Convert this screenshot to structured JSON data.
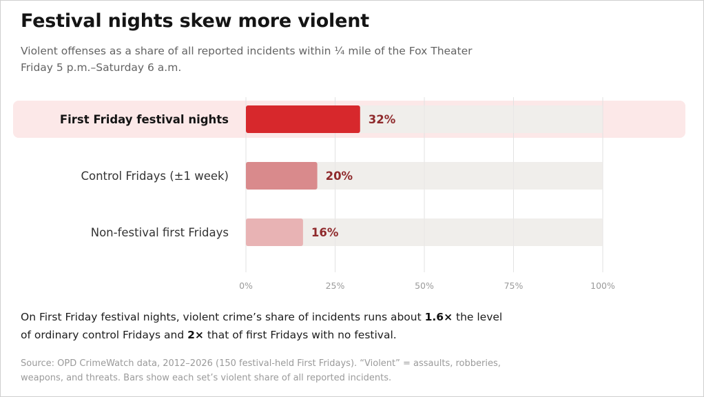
{
  "title": "Festival nights skew more violent",
  "subtitle_line1": "Violent offenses as a share of all reported incidents within ¼ mile of the Fox Theater",
  "subtitle_line2": "Friday 5 p.m.–Saturday 6 a.m.",
  "takeaway": {
    "part1": "On First Friday festival nights, violent crime’s share of incidents runs about ",
    "bold1": "1.6×",
    "part2": " the level of ordinary control Fridays and ",
    "bold2": "2×",
    "part3": " that of first Fridays with no festival."
  },
  "source_text": "Source: OPD CrimeWatch data, 2012–2026 (150 festival-held First Fridays). “Violent” = assaults, robberies, weapons, and threats. Bars show each set’s violent share of all reported incidents.",
  "colors": {
    "highlight_band": "#fce8e8",
    "bar_primary": "#d7282c",
    "bar_secondary": "#d98a8c",
    "bar_tertiary": "#e8b3b4",
    "track": "#f0eeeb",
    "value_text": "#8f2a2c",
    "grid": "#e2e2e2",
    "tick_text": "#9a9a9a"
  },
  "chart_data": {
    "type": "bar",
    "orientation": "horizontal",
    "categories": [
      "First Friday festival nights",
      "Control Fridays (±1 week)",
      "Non-festival first Fridays"
    ],
    "values": [
      32,
      20,
      16
    ],
    "value_labels": [
      "32%",
      "20%",
      "16%"
    ],
    "highlighted_category": "First Friday festival nights",
    "xlim": [
      0,
      100
    ],
    "xticks": [
      0,
      25,
      50,
      75,
      100
    ],
    "xtick_labels": [
      "0%",
      "25%",
      "50%",
      "75%",
      "100%"
    ],
    "grid": true,
    "legend": "none"
  }
}
